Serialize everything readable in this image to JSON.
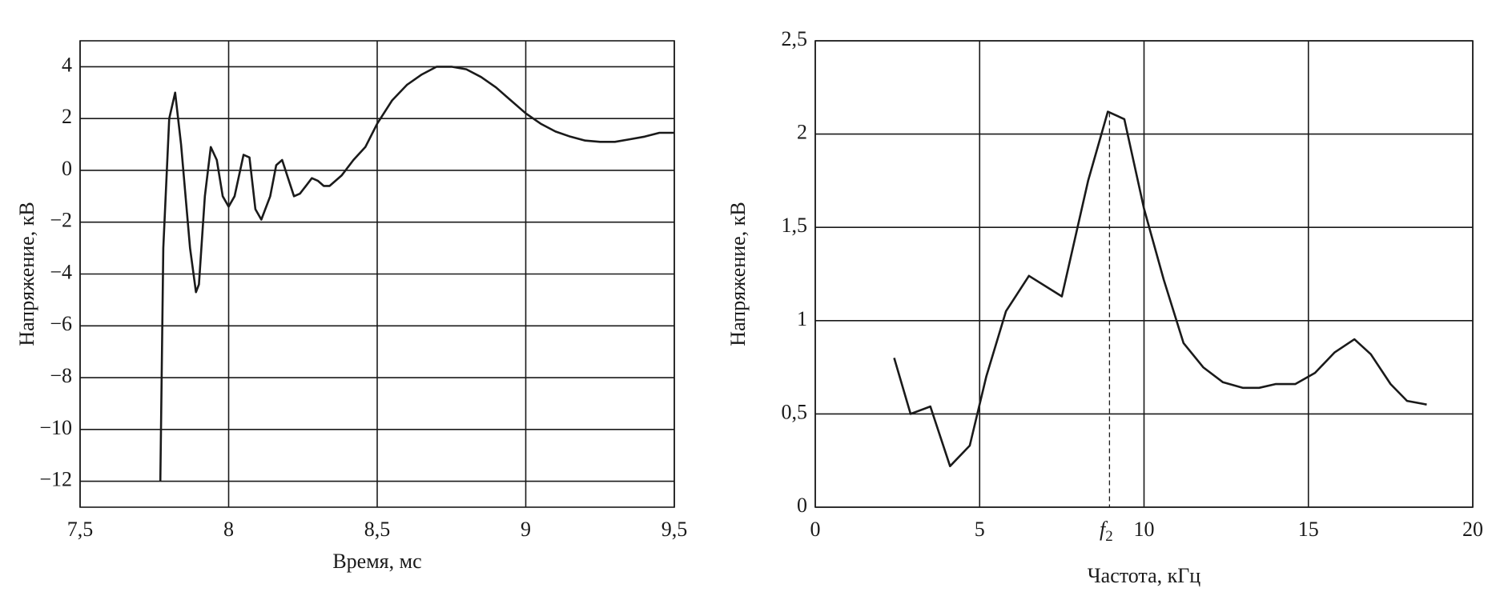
{
  "chart_data": [
    {
      "type": "line",
      "x_label": "Время, мс",
      "y_label": "Напряжение, кВ",
      "color": "#1a1a1a",
      "grid": true,
      "xlim": [
        7.5,
        9.5
      ],
      "xticks": [
        {
          "value": 7.5,
          "label": "7,5"
        },
        8,
        {
          "value": 8.5,
          "label": "8,5"
        },
        9,
        {
          "value": 9.5,
          "label": "9,5"
        }
      ],
      "ylim": [
        -13,
        5
      ],
      "yticks": [
        {
          "value": -12,
          "label": "−12"
        },
        {
          "value": -10,
          "label": "−10"
        },
        {
          "value": -8,
          "label": "−8"
        },
        {
          "value": -6,
          "label": "−6"
        },
        {
          "value": -4,
          "label": "−4"
        },
        {
          "value": -2,
          "label": "−2"
        },
        0,
        2,
        4
      ],
      "x": [
        7.77,
        7.78,
        7.8,
        7.82,
        7.84,
        7.87,
        7.89,
        7.9,
        7.92,
        7.94,
        7.96,
        7.98,
        8.0,
        8.02,
        8.05,
        8.07,
        8.09,
        8.11,
        8.14,
        8.16,
        8.18,
        8.2,
        8.22,
        8.24,
        8.26,
        8.28,
        8.3,
        8.32,
        8.34,
        8.38,
        8.42,
        8.46,
        8.5,
        8.55,
        8.6,
        8.65,
        8.7,
        8.75,
        8.8,
        8.85,
        8.9,
        8.95,
        9.0,
        9.05,
        9.1,
        9.15,
        9.2,
        9.25,
        9.3,
        9.35,
        9.4,
        9.45,
        9.5
      ],
      "values": [
        -12,
        -3,
        2,
        3,
        1,
        -3,
        -4.7,
        -4.4,
        -1,
        0.9,
        0.4,
        -1,
        -1.4,
        -1,
        0.6,
        0.5,
        -1.5,
        -1.9,
        -1,
        0.2,
        0.4,
        -0.3,
        -1,
        -0.9,
        -0.6,
        -0.3,
        -0.4,
        -0.6,
        -0.6,
        -0.2,
        0.4,
        0.9,
        1.8,
        2.7,
        3.3,
        3.7,
        4.0,
        4.0,
        3.9,
        3.6,
        3.2,
        2.7,
        2.2,
        1.8,
        1.5,
        1.3,
        1.15,
        1.1,
        1.1,
        1.2,
        1.3,
        1.45,
        1.45
      ]
    },
    {
      "type": "line",
      "x_label": "Частота, кГц",
      "y_label": "Напряжение, кВ",
      "color": "#1a1a1a",
      "grid": true,
      "xlim": [
        0,
        20
      ],
      "xticks": [
        0,
        5,
        10,
        15,
        20
      ],
      "ylim": [
        0,
        2.5
      ],
      "yticks": [
        0,
        {
          "value": 0.5,
          "label": "0,5"
        },
        1,
        {
          "value": 1.5,
          "label": "1,5"
        },
        2,
        {
          "value": 2.5,
          "label": "2,5"
        }
      ],
      "x": [
        2.4,
        2.9,
        3.5,
        4.1,
        4.7,
        5.2,
        5.8,
        6.5,
        7.5,
        8.3,
        8.9,
        9.4,
        10,
        10.6,
        11.2,
        11.8,
        12.4,
        13,
        13.5,
        14,
        14.6,
        15.2,
        15.8,
        16.4,
        16.9,
        17.5,
        18,
        18.6
      ],
      "values": [
        0.8,
        0.5,
        0.54,
        0.22,
        0.33,
        0.7,
        1.05,
        1.24,
        1.13,
        1.75,
        2.12,
        2.08,
        1.6,
        1.22,
        0.88,
        0.75,
        0.67,
        0.64,
        0.64,
        0.66,
        0.66,
        0.72,
        0.83,
        0.9,
        0.82,
        0.66,
        0.57,
        0.55
      ],
      "marker": {
        "x": 8.95,
        "label": "f",
        "subscript": "2"
      }
    }
  ]
}
